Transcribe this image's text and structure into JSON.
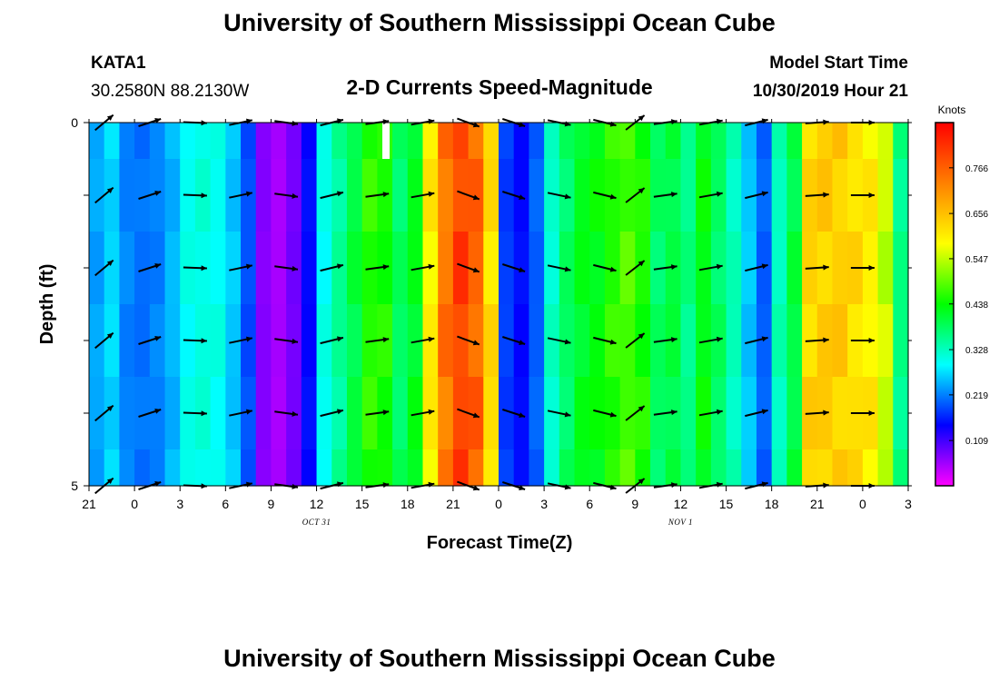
{
  "header": {
    "title": "University of Southern Mississippi Ocean Cube",
    "station": "KATA1",
    "coords": "30.2580N 88.2130W",
    "subtitle": "2-D Currents Speed-Magnitude",
    "model_label": "Model Start Time",
    "model_time": "10/30/2019 Hour 21"
  },
  "footer": {
    "title": "University of Southern Mississippi Ocean Cube"
  },
  "chart_data": {
    "type": "heatmap",
    "title": "2-D Currents Speed-Magnitude",
    "xlabel": "Forecast Time(Z)",
    "ylabel": "Depth (ft)",
    "x_ticks": [
      "21",
      "0",
      "3",
      "6",
      "9",
      "12",
      "15",
      "18",
      "21",
      "0",
      "3",
      "6",
      "9",
      "12",
      "15",
      "18",
      "21",
      "0",
      "3"
    ],
    "date_labels": [
      {
        "label": "OCT 31",
        "hour_index": 15
      },
      {
        "label": "NOV 1",
        "hour_index": 39
      }
    ],
    "y_ticks": [
      "0",
      "5"
    ],
    "ylim": [
      0,
      5
    ],
    "xlim_hours": [
      0,
      54
    ],
    "depth_levels": [
      0,
      1,
      2,
      3,
      4,
      5
    ],
    "colorbar": {
      "label": "Knots",
      "min": 0.0,
      "max": 0.875,
      "ticks": [
        "0.766",
        "0.656",
        "0.547",
        "0.438",
        "0.328",
        "0.219",
        "0.109"
      ],
      "stops": [
        "#ff00ff",
        "#0000ff",
        "#00ffff",
        "#00ff00",
        "#ffff00",
        "#ff8000",
        "#ff0000"
      ]
    },
    "speed_by_hour": [
      0.24,
      0.27,
      0.22,
      0.21,
      0.22,
      0.25,
      0.3,
      0.31,
      0.3,
      0.26,
      0.19,
      0.07,
      0.05,
      0.08,
      0.15,
      0.3,
      0.35,
      0.4,
      0.46,
      0.45,
      0.38,
      0.42,
      0.6,
      0.74,
      0.8,
      0.76,
      0.62,
      0.18,
      0.15,
      0.2,
      0.32,
      0.38,
      0.42,
      0.43,
      0.46,
      0.48,
      0.45,
      0.38,
      0.4,
      0.36,
      0.43,
      0.38,
      0.33,
      0.26,
      0.2,
      0.33,
      0.4,
      0.63,
      0.64,
      0.64,
      0.62,
      0.6,
      0.55,
      0.36
    ],
    "wind_hours": [
      0,
      3,
      6,
      9,
      12,
      15,
      18,
      21,
      24,
      27,
      30,
      33,
      36,
      39,
      42,
      45,
      48,
      51,
      54
    ],
    "arrows": [
      {
        "hour": 1,
        "angle": -40
      },
      {
        "hour": 4,
        "angle": -18
      },
      {
        "hour": 7,
        "angle": 2
      },
      {
        "hour": 10,
        "angle": -12
      },
      {
        "hour": 13,
        "angle": 8
      },
      {
        "hour": 16,
        "angle": -14
      },
      {
        "hour": 19,
        "angle": -8
      },
      {
        "hour": 22,
        "angle": -10
      },
      {
        "hour": 25,
        "angle": 20
      },
      {
        "hour": 28,
        "angle": 18
      },
      {
        "hour": 31,
        "angle": 12
      },
      {
        "hour": 34,
        "angle": 14
      },
      {
        "hour": 36,
        "angle": -38
      },
      {
        "hour": 38,
        "angle": -8
      },
      {
        "hour": 41,
        "angle": -10
      },
      {
        "hour": 44,
        "angle": -14
      },
      {
        "hour": 48,
        "angle": -4
      },
      {
        "hour": 51,
        "angle": 0
      }
    ]
  }
}
